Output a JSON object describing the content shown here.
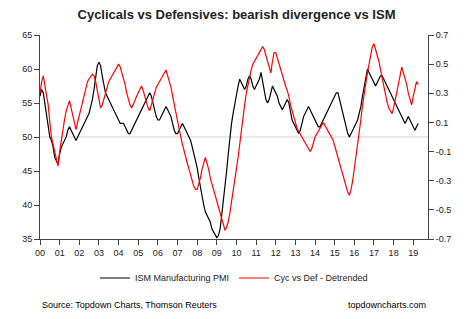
{
  "chart_data": {
    "type": "line",
    "title": "Cyclicals vs Defensives: bearish divergence vs ISM",
    "annotations": [
      "Source: Topdown Charts, Thomson Reuters",
      "topdowncharts.com"
    ],
    "x": [
      2000,
      2000.0833,
      2000.1667,
      2000.25,
      2000.3333,
      2000.4167,
      2000.5,
      2000.5833,
      2000.6667,
      2000.75,
      2000.8333,
      2000.9167,
      2001,
      2001.0833,
      2001.1667,
      2001.25,
      2001.3333,
      2001.4167,
      2001.5,
      2001.5833,
      2001.6667,
      2001.75,
      2001.8333,
      2001.9167,
      2002,
      2002.0833,
      2002.1667,
      2002.25,
      2002.3333,
      2002.4167,
      2002.5,
      2002.5833,
      2002.6667,
      2002.75,
      2002.8333,
      2002.9167,
      2003,
      2003.0833,
      2003.1667,
      2003.25,
      2003.3333,
      2003.4167,
      2003.5,
      2003.5833,
      2003.6667,
      2003.75,
      2003.8333,
      2003.9167,
      2004,
      2004.0833,
      2004.1667,
      2004.25,
      2004.3333,
      2004.4167,
      2004.5,
      2004.5833,
      2004.6667,
      2004.75,
      2004.8333,
      2004.9167,
      2005,
      2005.0833,
      2005.1667,
      2005.25,
      2005.3333,
      2005.4167,
      2005.5,
      2005.5833,
      2005.6667,
      2005.75,
      2005.8333,
      2005.9167,
      2006,
      2006.0833,
      2006.1667,
      2006.25,
      2006.3333,
      2006.4167,
      2006.5,
      2006.5833,
      2006.6667,
      2006.75,
      2006.8333,
      2006.9167,
      2007,
      2007.0833,
      2007.1667,
      2007.25,
      2007.3333,
      2007.4167,
      2007.5,
      2007.5833,
      2007.6667,
      2007.75,
      2007.8333,
      2007.9167,
      2008,
      2008.0833,
      2008.1667,
      2008.25,
      2008.3333,
      2008.4167,
      2008.5,
      2008.5833,
      2008.6667,
      2008.75,
      2008.8333,
      2008.9167,
      2009,
      2009.0833,
      2009.1667,
      2009.25,
      2009.3333,
      2009.4167,
      2009.5,
      2009.5833,
      2009.6667,
      2009.75,
      2009.8333,
      2009.9167,
      2010,
      2010.0833,
      2010.1667,
      2010.25,
      2010.3333,
      2010.4167,
      2010.5,
      2010.5833,
      2010.6667,
      2010.75,
      2010.8333,
      2010.9167,
      2011,
      2011.0833,
      2011.1667,
      2011.25,
      2011.3333,
      2011.4167,
      2011.5,
      2011.5833,
      2011.6667,
      2011.75,
      2011.8333,
      2011.9167,
      2012,
      2012.0833,
      2012.1667,
      2012.25,
      2012.3333,
      2012.4167,
      2012.5,
      2012.5833,
      2012.6667,
      2012.75,
      2012.8333,
      2012.9167,
      2013,
      2013.0833,
      2013.1667,
      2013.25,
      2013.3333,
      2013.4167,
      2013.5,
      2013.5833,
      2013.6667,
      2013.75,
      2013.8333,
      2013.9167,
      2014,
      2014.0833,
      2014.1667,
      2014.25,
      2014.3333,
      2014.4167,
      2014.5,
      2014.5833,
      2014.6667,
      2014.75,
      2014.8333,
      2014.9167,
      2015,
      2015.0833,
      2015.1667,
      2015.25,
      2015.3333,
      2015.4167,
      2015.5,
      2015.5833,
      2015.6667,
      2015.75,
      2015.8333,
      2015.9167,
      2016,
      2016.0833,
      2016.1667,
      2016.25,
      2016.3333,
      2016.4167,
      2016.5,
      2016.5833,
      2016.6667,
      2016.75,
      2016.8333,
      2016.9167,
      2017,
      2017.0833,
      2017.1667,
      2017.25,
      2017.3333,
      2017.4167,
      2017.5,
      2017.5833,
      2017.6667,
      2017.75,
      2017.8333,
      2017.9167,
      2018,
      2018.0833,
      2018.1667,
      2018.25,
      2018.3333,
      2018.4167,
      2018.5,
      2018.5833,
      2018.6667,
      2018.75,
      2018.8333,
      2018.9167,
      2019,
      2019.0833,
      2019.1667,
      2019.25
    ],
    "series": [
      {
        "name": "ISM Manufacturing PMI",
        "color": "#000000",
        "values": [
          56.0,
          57.0,
          56.5,
          55.0,
          53.5,
          51.5,
          50.0,
          49.5,
          48.5,
          47.0,
          46.5,
          46.0,
          47.5,
          48.5,
          49.0,
          49.5,
          50.0,
          51.0,
          51.5,
          51.0,
          50.5,
          50.0,
          49.5,
          50.0,
          50.5,
          51.0,
          51.5,
          52.0,
          52.5,
          53.0,
          53.5,
          54.5,
          55.5,
          57.0,
          59.0,
          60.5,
          61.0,
          60.5,
          59.0,
          57.5,
          56.5,
          56.0,
          55.5,
          55.0,
          54.5,
          54.0,
          53.5,
          53.0,
          52.5,
          52.0,
          52.0,
          52.0,
          51.5,
          51.0,
          50.5,
          50.5,
          51.0,
          51.5,
          52.0,
          52.5,
          53.0,
          53.5,
          54.0,
          54.5,
          55.0,
          55.5,
          56.0,
          56.5,
          56.0,
          55.0,
          54.0,
          53.0,
          52.5,
          52.5,
          53.0,
          53.5,
          54.0,
          54.5,
          54.0,
          53.5,
          53.0,
          52.0,
          51.0,
          50.5,
          50.5,
          51.0,
          51.5,
          52.0,
          51.5,
          51.0,
          50.5,
          50.0,
          49.5,
          48.5,
          47.5,
          46.5,
          45.5,
          44.0,
          42.5,
          41.0,
          40.0,
          39.0,
          38.5,
          38.0,
          37.5,
          36.5,
          36.0,
          35.5,
          35.2,
          35.5,
          36.5,
          38.5,
          40.5,
          42.5,
          45.0,
          47.5,
          50.0,
          52.0,
          53.5,
          55.0,
          56.5,
          57.5,
          58.5,
          58.0,
          57.5,
          57.0,
          57.5,
          58.5,
          59.0,
          58.5,
          57.5,
          57.0,
          57.5,
          58.0,
          58.5,
          59.5,
          58.0,
          56.5,
          55.5,
          55.0,
          55.5,
          56.5,
          57.5,
          57.0,
          56.5,
          56.0,
          55.0,
          54.5,
          54.0,
          54.5,
          55.0,
          55.5,
          55.0,
          53.5,
          52.5,
          52.0,
          51.5,
          51.0,
          50.5,
          51.0,
          52.0,
          53.0,
          53.5,
          54.0,
          54.5,
          54.0,
          53.5,
          53.0,
          52.5,
          52.0,
          51.5,
          51.5,
          52.0,
          52.5,
          53.0,
          53.5,
          54.0,
          54.5,
          55.0,
          55.5,
          56.0,
          56.5,
          56.5,
          55.5,
          54.5,
          53.5,
          52.5,
          51.5,
          50.5,
          50.0,
          50.5,
          51.0,
          51.5,
          52.0,
          52.5,
          53.5,
          54.5,
          56.0,
          57.5,
          59.0,
          60.0,
          59.5,
          59.0,
          58.5,
          58.0,
          57.5,
          58.0,
          58.5,
          59.0,
          59.0,
          58.5,
          58.0,
          57.5,
          57.0,
          56.5,
          56.0,
          55.5,
          55.0,
          54.5,
          54.0,
          53.5,
          53.0,
          52.5,
          52.0,
          52.5,
          53.0,
          52.5,
          52.0,
          51.5,
          51.0,
          51.5,
          52.0
        ]
      },
      {
        "name": "Cyc vs Def - Detrended",
        "color": "#ff0000",
        "axis": "y2",
        "values": [
          0.3,
          0.38,
          0.42,
          0.35,
          0.28,
          0.22,
          0.1,
          0.0,
          -0.05,
          -0.1,
          -0.15,
          -0.2,
          -0.1,
          -0.02,
          0.05,
          0.12,
          0.18,
          0.22,
          0.25,
          0.2,
          0.15,
          0.1,
          0.05,
          0.1,
          0.15,
          0.2,
          0.25,
          0.3,
          0.35,
          0.38,
          0.4,
          0.42,
          0.43,
          0.42,
          0.38,
          0.32,
          0.26,
          0.2,
          0.22,
          0.26,
          0.3,
          0.34,
          0.38,
          0.4,
          0.42,
          0.44,
          0.46,
          0.48,
          0.5,
          0.48,
          0.44,
          0.4,
          0.36,
          0.3,
          0.25,
          0.22,
          0.2,
          0.22,
          0.25,
          0.28,
          0.3,
          0.32,
          0.35,
          0.32,
          0.28,
          0.24,
          0.2,
          0.18,
          0.22,
          0.26,
          0.3,
          0.34,
          0.36,
          0.38,
          0.4,
          0.42,
          0.44,
          0.46,
          0.42,
          0.38,
          0.34,
          0.28,
          0.22,
          0.16,
          0.1,
          0.05,
          0.0,
          -0.05,
          -0.1,
          -0.15,
          -0.18,
          -0.22,
          -0.26,
          -0.3,
          -0.34,
          -0.36,
          -0.36,
          -0.32,
          -0.28,
          -0.22,
          -0.18,
          -0.14,
          -0.18,
          -0.22,
          -0.28,
          -0.32,
          -0.36,
          -0.4,
          -0.44,
          -0.48,
          -0.52,
          -0.56,
          -0.6,
          -0.64,
          -0.62,
          -0.58,
          -0.52,
          -0.45,
          -0.38,
          -0.3,
          -0.22,
          -0.14,
          -0.05,
          0.05,
          0.14,
          0.22,
          0.3,
          0.36,
          0.42,
          0.46,
          0.5,
          0.52,
          0.54,
          0.56,
          0.58,
          0.6,
          0.62,
          0.6,
          0.56,
          0.52,
          0.48,
          0.44,
          0.52,
          0.58,
          0.58,
          0.54,
          0.5,
          0.46,
          0.42,
          0.38,
          0.35,
          0.32,
          0.28,
          0.22,
          0.18,
          0.14,
          0.1,
          0.06,
          0.04,
          0.02,
          0.0,
          -0.02,
          -0.04,
          -0.06,
          -0.08,
          -0.1,
          -0.08,
          -0.04,
          0.0,
          0.02,
          0.04,
          0.06,
          0.08,
          0.1,
          0.08,
          0.06,
          0.04,
          0.02,
          0.0,
          -0.02,
          -0.06,
          -0.1,
          -0.14,
          -0.18,
          -0.22,
          -0.26,
          -0.3,
          -0.34,
          -0.38,
          -0.4,
          -0.36,
          -0.3,
          -0.22,
          -0.14,
          -0.06,
          0.04,
          0.12,
          0.22,
          0.3,
          0.38,
          0.44,
          0.5,
          0.56,
          0.62,
          0.64,
          0.6,
          0.56,
          0.52,
          0.46,
          0.4,
          0.34,
          0.28,
          0.24,
          0.2,
          0.18,
          0.16,
          0.2,
          0.26,
          0.32,
          0.38,
          0.44,
          0.48,
          0.44,
          0.4,
          0.36,
          0.3,
          0.26,
          0.22,
          0.28,
          0.34,
          0.38,
          0.36
        ]
      }
    ],
    "xlim": [
      2000,
      2019.75
    ],
    "xticks": [
      {
        "value": 2000,
        "label": "00"
      },
      {
        "value": 2001,
        "label": "01"
      },
      {
        "value": 2002,
        "label": "02"
      },
      {
        "value": 2003,
        "label": "03"
      },
      {
        "value": 2004,
        "label": "04"
      },
      {
        "value": 2005,
        "label": "05"
      },
      {
        "value": 2006,
        "label": "06"
      },
      {
        "value": 2007,
        "label": "07"
      },
      {
        "value": 2008,
        "label": "08"
      },
      {
        "value": 2009,
        "label": "09"
      },
      {
        "value": 2010,
        "label": "10"
      },
      {
        "value": 2011,
        "label": "11"
      },
      {
        "value": 2012,
        "label": "12"
      },
      {
        "value": 2013,
        "label": "13"
      },
      {
        "value": 2014,
        "label": "14"
      },
      {
        "value": 2015,
        "label": "15"
      },
      {
        "value": 2016,
        "label": "16"
      },
      {
        "value": 2017,
        "label": "17"
      },
      {
        "value": 2018,
        "label": "18"
      },
      {
        "value": 2019,
        "label": "19"
      }
    ],
    "ylim": [
      35,
      65
    ],
    "yticks": [
      35,
      40,
      45,
      50,
      55,
      60,
      65
    ],
    "y2lim": [
      -0.7,
      0.7
    ],
    "y2ticks": [
      -0.7,
      -0.5,
      -0.3,
      -0.1,
      0.1,
      0.3,
      0.5,
      0.7
    ],
    "hline": 50,
    "grid": false,
    "legend": "lower center"
  }
}
